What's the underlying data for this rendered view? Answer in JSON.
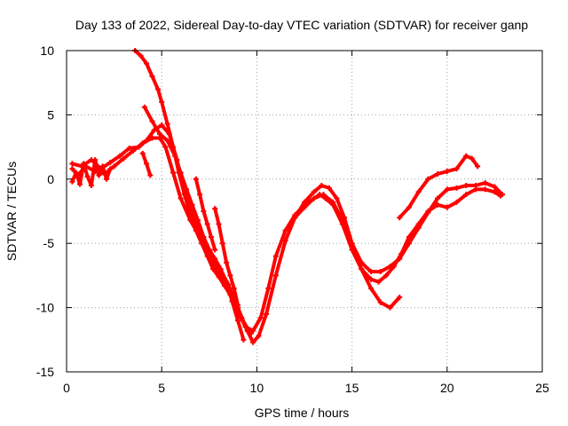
{
  "chart_data": {
    "type": "line",
    "title": "Day 133 of 2022, Sidereal Day-to-day VTEC variation (SDTVAR) for receiver ganp",
    "xlabel": "GPS time / hours",
    "ylabel": "SDTVAR / TECUs",
    "xlim": [
      0,
      25
    ],
    "ylim": [
      -15,
      10
    ],
    "x_ticks": [
      0,
      5,
      10,
      15,
      20,
      25
    ],
    "y_ticks": [
      -15,
      -10,
      -5,
      0,
      5,
      10
    ],
    "grid": true,
    "legend": "none",
    "series_color": "#ff0000",
    "series": [
      {
        "x": [
          0.3,
          0.6,
          1.0,
          1.5,
          2.0,
          2.5,
          3.0,
          3.5,
          4.0,
          4.5,
          4.9,
          5.2,
          5.6,
          6.0,
          6.5,
          7.0,
          7.5,
          8.0,
          8.5,
          9.0,
          9.4,
          9.8,
          10.2,
          10.6,
          11.0,
          11.5,
          12.0,
          12.5,
          13.0,
          13.3,
          13.6,
          14.0,
          14.5,
          15.0,
          15.5,
          16.0,
          16.4,
          16.8,
          17.2,
          17.6,
          18.0,
          18.5,
          19.0,
          19.5,
          20.0,
          20.5,
          21.0,
          21.5,
          22.0,
          22.5,
          22.8
        ],
        "y": [
          0.8,
          0.3,
          1.0,
          0.6,
          0.4,
          1.0,
          1.6,
          2.2,
          2.8,
          3.2,
          3.2,
          2.5,
          0.5,
          -1.5,
          -3.2,
          -4.5,
          -6.0,
          -7.2,
          -8.5,
          -10.3,
          -11.5,
          -11.8,
          -10.8,
          -8.5,
          -6.0,
          -4.0,
          -2.8,
          -2.0,
          -1.5,
          -1.2,
          -1.5,
          -2.0,
          -3.5,
          -5.5,
          -7.0,
          -7.8,
          -8.0,
          -7.5,
          -6.8,
          -5.8,
          -4.5,
          -3.5,
          -2.5,
          -2.0,
          -2.2,
          -1.8,
          -1.2,
          -0.8,
          -0.8,
          -1.0,
          -1.3
        ]
      },
      {
        "x": [
          0.3,
          0.8,
          1.3,
          1.8,
          2.3,
          2.8,
          3.3,
          3.8,
          4.2,
          4.6,
          5.0,
          5.4,
          5.8,
          6.2,
          6.6,
          7.0,
          7.5,
          8.0,
          8.5,
          9.0,
          9.5,
          9.8,
          10.1,
          10.5,
          11.0,
          11.5,
          12.0,
          12.5,
          13.0,
          13.4,
          13.8,
          14.2,
          14.6,
          15.0,
          15.5,
          16.0,
          16.5,
          17.0,
          17.5,
          18.0,
          18.5,
          19.0,
          19.5,
          20.0,
          20.5,
          21.0,
          21.5,
          22.0,
          22.5,
          22.9
        ],
        "y": [
          1.2,
          1.0,
          1.5,
          0.8,
          1.3,
          1.8,
          2.4,
          2.5,
          3.0,
          3.8,
          4.2,
          3.5,
          1.5,
          -1.0,
          -2.8,
          -4.2,
          -5.5,
          -6.8,
          -8.2,
          -10.0,
          -11.8,
          -12.7,
          -12.2,
          -10.5,
          -7.5,
          -4.8,
          -3.0,
          -1.8,
          -1.0,
          -0.5,
          -0.7,
          -1.5,
          -3.0,
          -5.0,
          -6.5,
          -7.2,
          -7.2,
          -6.8,
          -6.2,
          -5.0,
          -3.8,
          -2.6,
          -1.5,
          -0.8,
          -0.7,
          -0.5,
          -0.5,
          -0.3,
          -0.6,
          -1.2
        ]
      },
      {
        "x": [
          3.6,
          3.9,
          4.2,
          4.5,
          4.8,
          5.0,
          5.3,
          5.6,
          5.9,
          6.2,
          6.5,
          6.8,
          7.1,
          7.4,
          7.7,
          8.0,
          8.3,
          8.6,
          8.9,
          9.2,
          9.5,
          9.7
        ],
        "y": [
          10.0,
          9.6,
          9.0,
          8.0,
          7.0,
          6.0,
          4.3,
          2.5,
          0.5,
          -1.2,
          -2.8,
          -4.0,
          -5.0,
          -6.0,
          -7.0,
          -7.6,
          -8.3,
          -9.0,
          -9.8,
          -10.8,
          -11.6,
          -12.0
        ]
      },
      {
        "x": [
          4.1,
          4.5,
          4.9,
          5.3,
          5.7,
          6.0,
          6.3,
          6.6,
          6.9,
          7.2,
          7.5,
          7.8,
          8.1,
          8.4,
          8.7,
          9.0,
          9.3
        ],
        "y": [
          5.6,
          4.5,
          3.5,
          3.0,
          1.8,
          0.5,
          -0.8,
          -2.0,
          -3.2,
          -4.5,
          -5.5,
          -6.2,
          -7.0,
          -8.0,
          -9.5,
          -11.0,
          -12.5
        ]
      },
      {
        "x": [
          6.8,
          7.0,
          7.2,
          7.4,
          7.6,
          7.8
        ],
        "y": [
          0.0,
          -1.2,
          -2.5,
          -3.5,
          -4.5,
          -5.5
        ]
      },
      {
        "x": [
          7.8,
          8.0,
          8.2,
          8.4,
          8.6,
          8.8,
          9.0
        ],
        "y": [
          -2.3,
          -3.5,
          -5.0,
          -6.5,
          -7.5,
          -8.5,
          -9.8
        ]
      },
      {
        "x": [
          12.0,
          12.5,
          13.0,
          13.5,
          14.0,
          14.5,
          15.0,
          15.5,
          16.0,
          16.5,
          17.0,
          17.5
        ],
        "y": [
          -3.0,
          -2.2,
          -1.5,
          -1.2,
          -1.8,
          -3.2,
          -5.2,
          -7.0,
          -8.5,
          -9.6,
          -10.0,
          -9.2
        ]
      },
      {
        "x": [
          17.5,
          18.0,
          18.5,
          19.0,
          19.5,
          20.0,
          20.5,
          21.0,
          21.3,
          21.6
        ],
        "y": [
          -3.0,
          -2.2,
          -1.0,
          0.0,
          0.4,
          0.6,
          0.8,
          1.8,
          1.6,
          1.0
        ]
      },
      {
        "x": [
          0.3,
          0.5,
          0.7,
          0.9,
          1.1,
          1.3,
          1.5,
          1.7,
          1.9,
          2.1,
          2.3
        ],
        "y": [
          -0.2,
          0.5,
          -0.4,
          1.2,
          0.2,
          -0.5,
          1.5,
          0.3,
          1.0,
          0.0,
          0.8
        ]
      },
      {
        "x": [
          4.0,
          4.2,
          4.4
        ],
        "y": [
          2.0,
          1.2,
          0.3
        ]
      }
    ]
  }
}
